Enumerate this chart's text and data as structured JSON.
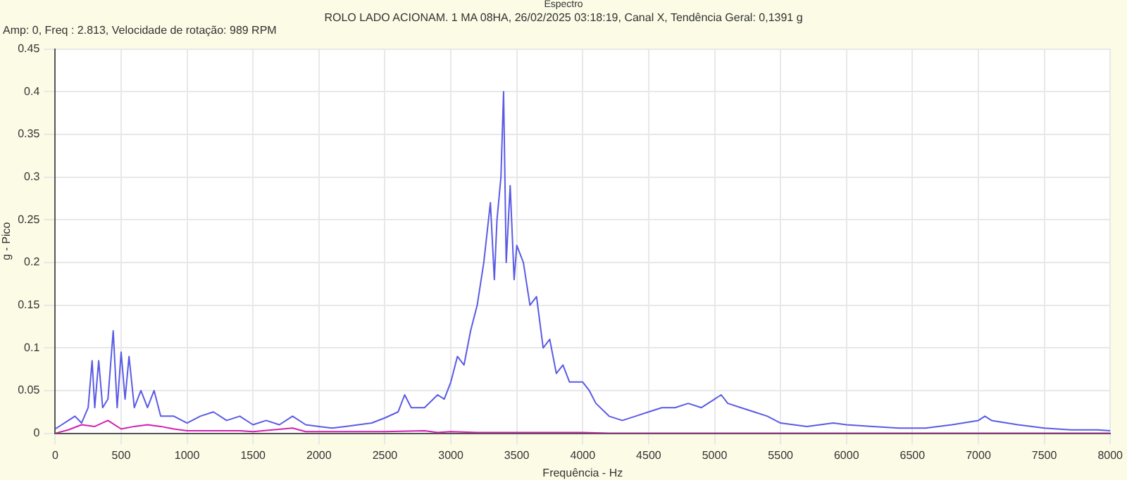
{
  "chart_data": {
    "type": "line",
    "title": "Espectro",
    "subtitle": "ROLO LADO ACIONAM. 1 MA 08HA, 26/02/2025 03:18:19, Canal X, Tendência Geral: 0,1391 g",
    "annotations": [
      "Amp: 0, Freq : 2.813, Velocidade de rotação: 989 RPM"
    ],
    "xlabel": "Frequência - Hz",
    "ylabel": "g - Pico",
    "xlim": [
      0,
      8000
    ],
    "xticks": [
      0,
      500,
      1000,
      1500,
      2000,
      2500,
      3000,
      3500,
      4000,
      4500,
      5000,
      5500,
      6000,
      6500,
      7000,
      7500,
      8000
    ],
    "ylim": [
      0,
      0.45
    ],
    "yticks": [
      0,
      0.05,
      0.1,
      0.15,
      0.2,
      0.25,
      0.3,
      0.35,
      0.4,
      0.45
    ],
    "grid": true,
    "marker": "none",
    "line_style": "solid",
    "series": [
      {
        "color": "#5a5ae6",
        "x": [
          0,
          50,
          100,
          150,
          200,
          250,
          280,
          300,
          330,
          360,
          400,
          440,
          470,
          500,
          530,
          560,
          600,
          650,
          700,
          750,
          800,
          900,
          1000,
          1100,
          1200,
          1300,
          1400,
          1500,
          1600,
          1700,
          1800,
          1900,
          2000,
          2100,
          2200,
          2300,
          2400,
          2500,
          2600,
          2650,
          2700,
          2800,
          2900,
          2950,
          3000,
          3050,
          3100,
          3150,
          3200,
          3250,
          3300,
          3330,
          3350,
          3380,
          3400,
          3420,
          3450,
          3480,
          3500,
          3550,
          3600,
          3650,
          3700,
          3750,
          3800,
          3850,
          3900,
          4000,
          4050,
          4100,
          4200,
          4300,
          4400,
          4500,
          4600,
          4700,
          4800,
          4900,
          5000,
          5050,
          5100,
          5200,
          5300,
          5400,
          5500,
          5600,
          5700,
          5800,
          5900,
          6000,
          6200,
          6400,
          6600,
          6800,
          7000,
          7050,
          7100,
          7300,
          7500,
          7700,
          7900,
          8000
        ],
        "values": [
          0.005,
          0.01,
          0.015,
          0.02,
          0.012,
          0.03,
          0.085,
          0.03,
          0.085,
          0.03,
          0.04,
          0.12,
          0.03,
          0.095,
          0.04,
          0.09,
          0.03,
          0.05,
          0.03,
          0.05,
          0.02,
          0.02,
          0.012,
          0.02,
          0.025,
          0.015,
          0.02,
          0.01,
          0.015,
          0.01,
          0.02,
          0.01,
          0.008,
          0.006,
          0.008,
          0.01,
          0.012,
          0.018,
          0.025,
          0.045,
          0.03,
          0.03,
          0.045,
          0.04,
          0.06,
          0.09,
          0.08,
          0.12,
          0.15,
          0.2,
          0.27,
          0.18,
          0.25,
          0.3,
          0.4,
          0.2,
          0.29,
          0.18,
          0.22,
          0.2,
          0.15,
          0.16,
          0.1,
          0.11,
          0.07,
          0.08,
          0.06,
          0.06,
          0.05,
          0.035,
          0.02,
          0.015,
          0.02,
          0.025,
          0.03,
          0.03,
          0.035,
          0.03,
          0.04,
          0.045,
          0.035,
          0.03,
          0.025,
          0.02,
          0.012,
          0.01,
          0.008,
          0.01,
          0.012,
          0.01,
          0.008,
          0.006,
          0.006,
          0.01,
          0.015,
          0.02,
          0.015,
          0.01,
          0.006,
          0.004,
          0.004,
          0.003
        ]
      },
      {
        "color": "#d020b0",
        "x": [
          0,
          100,
          200,
          300,
          400,
          500,
          600,
          700,
          800,
          900,
          1000,
          1200,
          1400,
          1500,
          1800,
          1900,
          2200,
          2500,
          2800,
          2900,
          3000,
          3200,
          3500,
          4000,
          4200,
          5000,
          6000,
          7000,
          8000
        ],
        "values": [
          0,
          0.004,
          0.01,
          0.008,
          0.015,
          0.005,
          0.008,
          0.01,
          0.008,
          0.005,
          0.003,
          0.003,
          0.003,
          0.002,
          0.006,
          0.002,
          0.002,
          0.002,
          0.003,
          0.001,
          0.002,
          0.001,
          0.001,
          0.001,
          0,
          0,
          0,
          0,
          0
        ]
      }
    ]
  }
}
